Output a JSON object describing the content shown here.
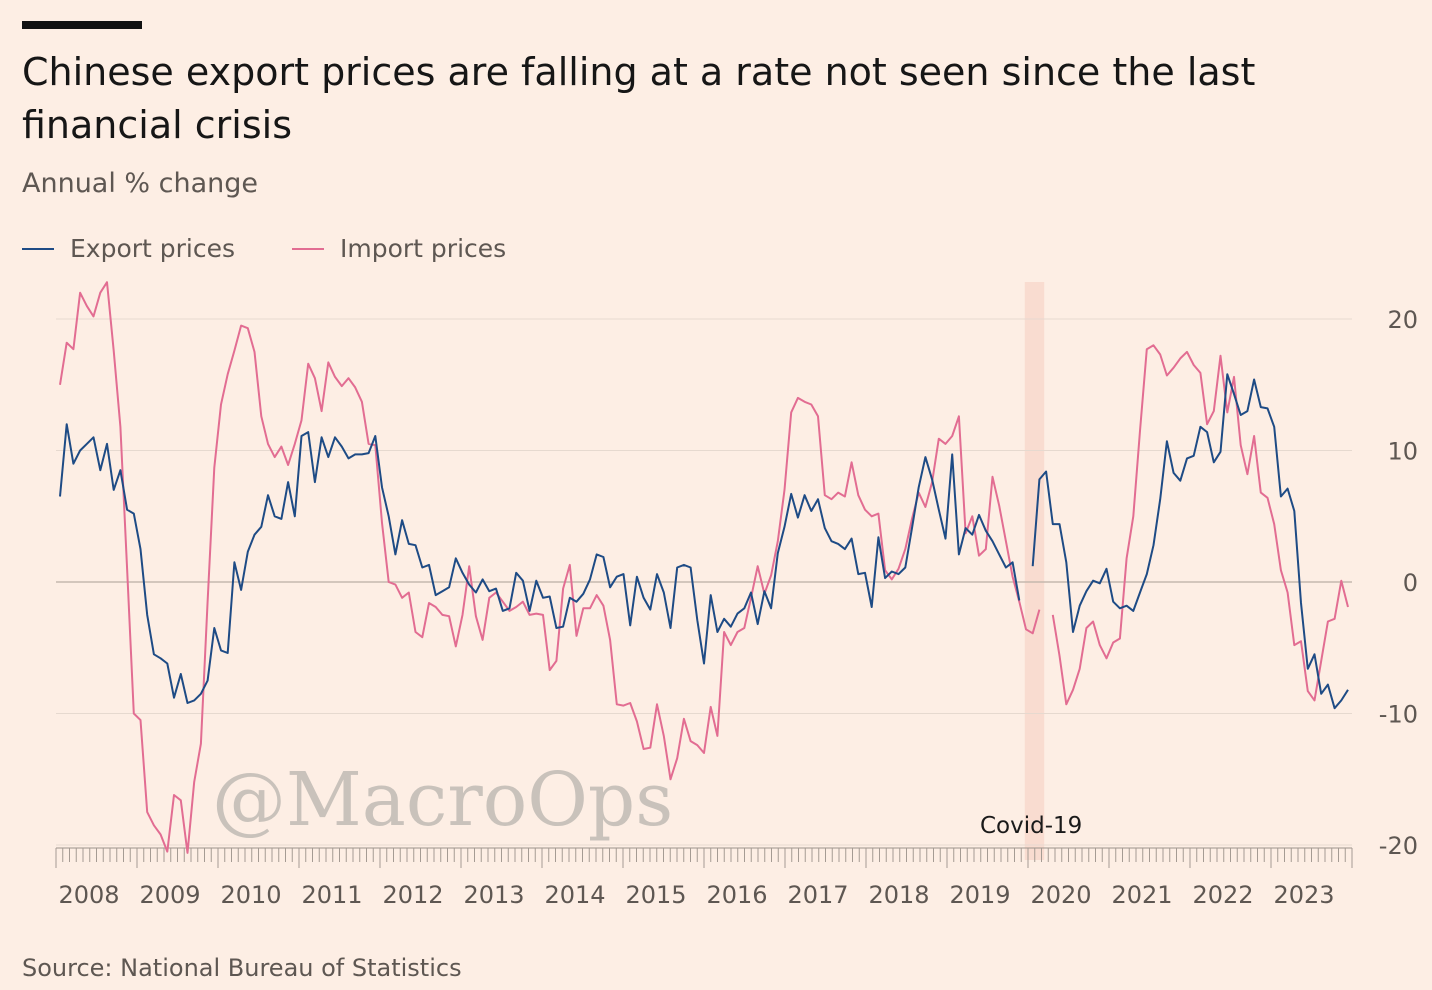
{
  "header": {
    "title": "Chinese export prices are falling at a rate not seen since the last financial crisis",
    "subtitle": "Annual % change"
  },
  "footer": {
    "source": "Source: National Bureau of Statistics"
  },
  "watermark": "@MacroOps",
  "colors": {
    "background": "#fdeee4",
    "export": "#1e4b85",
    "import": "#e26d92",
    "grid": "#e6d9cf",
    "zero": "#c5b8ae",
    "shade": "#f9dcd0"
  },
  "chart_data": {
    "type": "line",
    "title": "Chinese export prices are falling at a rate not seen since the last financial crisis",
    "ylabel": "Annual % change",
    "xlabel": "",
    "ylim": [
      -20,
      22
    ],
    "yticks": [
      20,
      10,
      0,
      -10,
      -20
    ],
    "ytick_labels": [
      "20",
      "10",
      "0",
      "-10",
      "-20"
    ],
    "xlim": [
      2008,
      2024
    ],
    "xticks": [
      2008,
      2009,
      2010,
      2011,
      2012,
      2013,
      2014,
      2015,
      2016,
      2017,
      2018,
      2019,
      2020,
      2021,
      2022,
      2023
    ],
    "xtick_labels": [
      "2008",
      "2009",
      "2010",
      "2011",
      "2012",
      "2013",
      "2014",
      "2015",
      "2016",
      "2017",
      "2018",
      "2019",
      "2020",
      "2021",
      "2022",
      "2023"
    ],
    "annotations": [
      {
        "label": "Covid-19",
        "x_start": 2019.96,
        "x_end": 2020.2
      }
    ],
    "legend": [
      "Export prices",
      "Import prices"
    ],
    "series": [
      {
        "name": "Export prices",
        "gap_at_index": 145,
        "values": [
          6.5,
          12,
          9,
          10,
          10.5,
          11,
          8.5,
          10.5,
          7,
          8.5,
          5.5,
          5.2,
          2.5,
          -2.5,
          -5.5,
          -5.8,
          -6.2,
          -8.8,
          -7,
          -9.2,
          -9,
          -8.5,
          -7.5,
          -3.5,
          -5.2,
          -5.4,
          1.5,
          -0.6,
          2.3,
          3.6,
          4.2,
          6.6,
          5,
          4.8,
          7.6,
          5,
          11.1,
          11.4,
          7.6,
          11,
          9.5,
          11,
          10.3,
          9.4,
          9.7,
          9.7,
          9.8,
          11.1,
          7.2,
          5,
          2.1,
          4.7,
          2.9,
          2.8,
          1.1,
          1.3,
          -1,
          -0.7,
          -0.4,
          1.8,
          0.7,
          -0.2,
          -0.8,
          0.2,
          -0.7,
          -0.5,
          -2.2,
          -2,
          0.7,
          0.1,
          -2.2,
          0.1,
          -1.2,
          -1.1,
          -3.5,
          -3.4,
          -1.2,
          -1.5,
          -0.9,
          0.2,
          2.1,
          1.9,
          -0.4,
          0.4,
          0.6,
          -3.3,
          0.4,
          -1.2,
          -2.1,
          0.6,
          -0.8,
          -3.5,
          1.1,
          1.3,
          1.1,
          -2.9,
          -6.2,
          -1,
          -3.8,
          -2.8,
          -3.4,
          -2.4,
          -2,
          -0.8,
          -3.2,
          -0.7,
          -2,
          2.2,
          4.2,
          6.7,
          4.9,
          6.6,
          5.4,
          6.3,
          4.1,
          3.1,
          2.9,
          2.5,
          3.3,
          0.6,
          0.7,
          -1.9,
          3.4,
          0.3,
          0.8,
          0.6,
          1.1,
          4.1,
          7.2,
          9.5,
          7.8,
          5.5,
          3.3,
          9.7,
          2.1,
          4.1,
          3.6,
          5.1,
          3.9,
          3.1,
          2.1,
          1.1,
          1.5,
          -1.4,
          null,
          1.2,
          7.8,
          8.4,
          4.4,
          4.4,
          1.5,
          -3.8,
          -1.8,
          -0.7,
          0.1,
          -0.1,
          1,
          -1.5,
          -2,
          -1.8,
          -2.2,
          -0.8,
          0.6,
          2.8,
          6.3,
          10.7,
          8.3,
          7.7,
          9.4,
          9.6,
          11.8,
          11.4,
          9.1,
          9.9,
          15.8,
          14.3,
          12.7,
          13,
          15.4,
          13.3,
          13.2,
          11.8,
          6.5,
          7.1,
          5.4,
          -1.6,
          -6.6,
          -5.5,
          -8.5,
          -7.8,
          -9.6,
          -9,
          -8.2
        ]
      },
      {
        "name": "Import prices",
        "gap_at_index": 145,
        "values": [
          15,
          18.2,
          17.7,
          22,
          21,
          20.2,
          22,
          22.8,
          17.6,
          11.8,
          1,
          -10,
          -10.5,
          -17.5,
          -18.5,
          -19.2,
          -20.5,
          -16.2,
          -16.6,
          -20.6,
          -15.2,
          -12.3,
          -1.5,
          8.7,
          13.5,
          15.8,
          17.6,
          19.5,
          19.3,
          17.5,
          12.6,
          10.5,
          9.5,
          10.3,
          8.9,
          10.5,
          12.3,
          16.6,
          15.5,
          13,
          16.7,
          15.6,
          14.9,
          15.5,
          14.8,
          13.7,
          10.5,
          10.4,
          4.5,
          0,
          -0.2,
          -1.2,
          -0.8,
          -3.8,
          -4.2,
          -1.6,
          -1.9,
          -2.5,
          -2.6,
          -4.9,
          -2.5,
          1.2,
          -2.6,
          -4.4,
          -1.2,
          -0.8,
          -1.5,
          -2.2,
          -1.9,
          -1.5,
          -2.5,
          -2.4,
          -2.5,
          -6.7,
          -6,
          -0.5,
          1.3,
          -4.1,
          -2,
          -2,
          -1,
          -1.8,
          -4.4,
          -9.3,
          -9.4,
          -9.2,
          -10.6,
          -12.7,
          -12.6,
          -9.3,
          -11.7,
          -15,
          -13.4,
          -10.4,
          -12.1,
          -12.4,
          -13,
          -9.5,
          -11.7,
          -3.8,
          -4.8,
          -3.8,
          -3.5,
          -1.2,
          1.2,
          -0.9,
          0.5,
          3.1,
          7,
          12.9,
          14,
          13.7,
          13.5,
          12.6,
          6.6,
          6.3,
          6.8,
          6.5,
          9.1,
          6.6,
          5.5,
          5,
          5.2,
          0.9,
          0.2,
          1,
          2.5,
          4.8,
          6.8,
          5.7,
          7.6,
          10.9,
          10.5,
          11.1,
          12.6,
          3.7,
          5,
          2,
          2.5,
          8,
          5.8,
          3.1,
          0.4,
          -1.5,
          -3.6,
          -3.9,
          -2.1,
          null,
          -2.5,
          -5.6,
          -9.3,
          -8.2,
          -6.6,
          -3.5,
          -3,
          -4.8,
          -5.8,
          -4.6,
          -4.3,
          1.8,
          5,
          11.5,
          17.7,
          18,
          17.3,
          15.7,
          16.3,
          17,
          17.5,
          16.5,
          15.9,
          12,
          13,
          17.2,
          12.9,
          15.6,
          10.4,
          8.2,
          11.1,
          6.8,
          6.4,
          4.4,
          0.9,
          -0.8,
          -4.8,
          -4.5,
          -8.3,
          -9,
          -6,
          -3,
          -2.8,
          0.1,
          -1.9
        ]
      }
    ]
  },
  "legend": {
    "items": [
      {
        "label": "Export prices",
        "color": "#1e4b85"
      },
      {
        "label": "Import prices",
        "color": "#e26d92"
      }
    ]
  }
}
